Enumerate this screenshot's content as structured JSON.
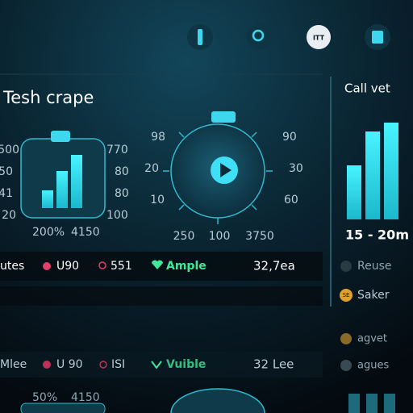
{
  "top_bar": {
    "icon_labels": [
      "ITT"
    ]
  },
  "left_panel": {
    "title": "Tesh crape",
    "gauge": {
      "left_labels": [
        "500",
        "50",
        "41",
        "20"
      ],
      "right_labels": [
        "770",
        "80",
        "80",
        "100"
      ],
      "bottom_labels": [
        "200%",
        "4150"
      ]
    }
  },
  "dial": {
    "left_labels": [
      "98",
      "20",
      "10"
    ],
    "right_labels": [
      "90",
      "30",
      "60"
    ],
    "bottom_labels": [
      "250",
      "100",
      "3750"
    ]
  },
  "right_panel": {
    "title": "Call vet",
    "duration": "15 - 20m",
    "items": [
      "Reuse",
      "Saker",
      "agvet",
      "agues"
    ],
    "item_icons": [
      "SE"
    ]
  },
  "rows": [
    {
      "label": "utes",
      "chip1": "U90",
      "chip2": "551",
      "status": "Ample",
      "value": "32,7ea"
    },
    {
      "label": "Mlee",
      "chip1": "U 90",
      "chip2": "ISI",
      "status": "Vuible",
      "value": "32 Lee"
    }
  ],
  "footer": {
    "labels": [
      "50%",
      "4150"
    ]
  }
}
